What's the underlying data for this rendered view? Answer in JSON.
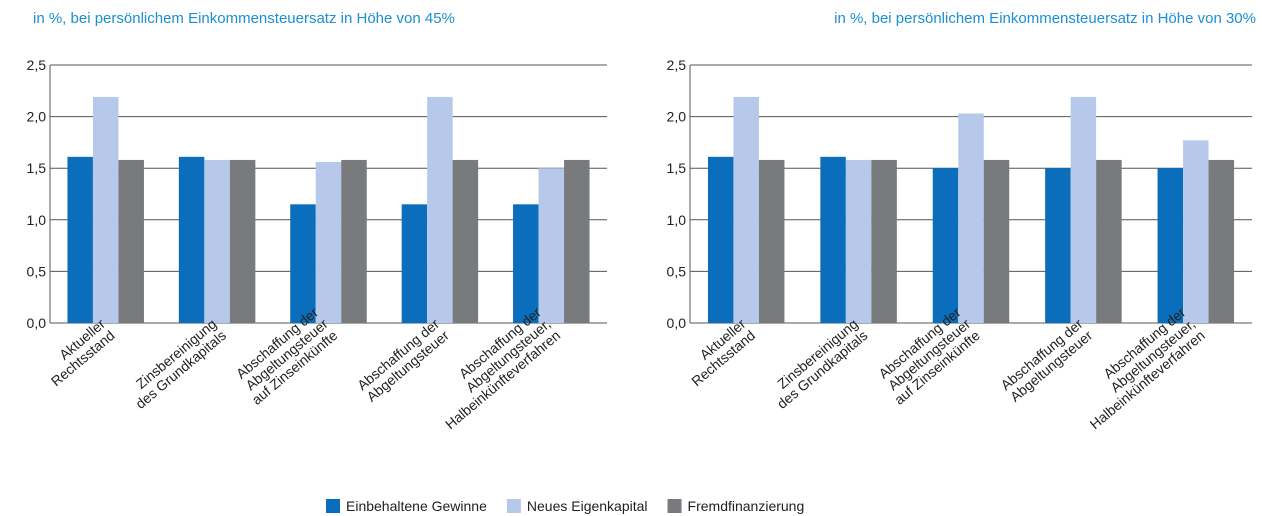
{
  "legend": [
    {
      "name": "Einbehaltene Gewinne",
      "color": "#0a6ebd"
    },
    {
      "name": "Neues Eigenkapital",
      "color": "#b7c9ea"
    },
    {
      "name": "Fremdfinanzierung",
      "color": "#797a7e"
    }
  ],
  "chart_data": [
    {
      "type": "bar",
      "title": "in %, bei persönlichem Einkommensteuersatz in Höhe von 45%",
      "categories": [
        [
          "Aktueller",
          "Rechtsstand"
        ],
        [
          "Zinsbereinigung",
          "des Grundkapitals"
        ],
        [
          "Abschaffung der",
          "Abgeltungsteuer",
          "auf Zinseinkünfte"
        ],
        [
          "Abschaffung der",
          "Abgeltungsteuer"
        ],
        [
          "Abschaffung der",
          "Abgeltungsteuer,",
          "Halbeinkünfteverfahren"
        ]
      ],
      "series": [
        {
          "values": [
            1.61,
            1.61,
            1.15,
            1.15,
            1.15
          ]
        },
        {
          "values": [
            2.19,
            1.58,
            1.56,
            2.19,
            1.5
          ]
        },
        {
          "values": [
            1.58,
            1.58,
            1.58,
            1.58,
            1.58
          ]
        }
      ],
      "ylim": [
        0,
        2.5
      ],
      "yticks": [
        {
          "value": 0,
          "label": "0,0"
        },
        {
          "value": 0.5,
          "label": "0,5"
        },
        {
          "value": 1,
          "label": "1,0"
        },
        {
          "value": 1.5,
          "label": "1,5"
        },
        {
          "value": 2,
          "label": "2,0"
        },
        {
          "value": 2.5,
          "label": "2,5"
        }
      ],
      "grid": true
    },
    {
      "type": "bar",
      "title": "in %, bei persönlichem Einkommensteuersatz in Höhe von 30%",
      "categories": [
        [
          "Aktueller",
          "Rechtsstand"
        ],
        [
          "Zinsbereinigung",
          "des Grundkapitals"
        ],
        [
          "Abschaffung der",
          "Abgeltungsteuer",
          "auf Zinseinkünfte"
        ],
        [
          "Abschaffung der",
          "Abgeltungsteuer"
        ],
        [
          "Abschaffung der",
          "Abgeltungsteuer,",
          "Halbeinkünfteverfahren"
        ]
      ],
      "series": [
        {
          "values": [
            1.61,
            1.61,
            1.5,
            1.5,
            1.5
          ]
        },
        {
          "values": [
            2.19,
            1.58,
            2.03,
            2.19,
            1.77
          ]
        },
        {
          "values": [
            1.58,
            1.58,
            1.58,
            1.58,
            1.58
          ]
        }
      ],
      "ylim": [
        0,
        2.5
      ],
      "yticks": [
        {
          "value": 0,
          "label": "0,0"
        },
        {
          "value": 0.5,
          "label": "0,5"
        },
        {
          "value": 1,
          "label": "1,0"
        },
        {
          "value": 1.5,
          "label": "1,5"
        },
        {
          "value": 2,
          "label": "2,0"
        },
        {
          "value": 2.5,
          "label": "2,5"
        }
      ],
      "grid": true
    }
  ]
}
